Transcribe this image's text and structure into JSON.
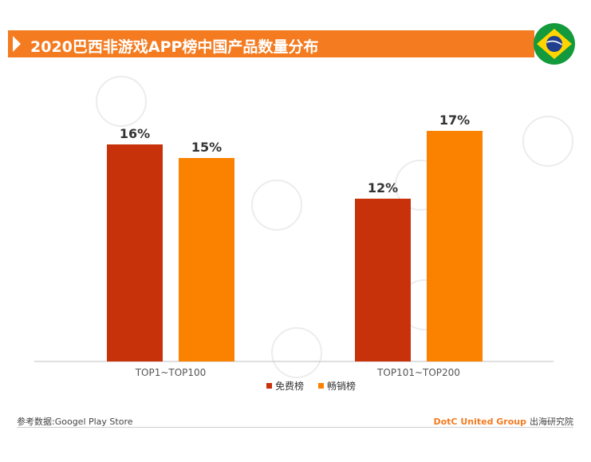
{
  "header": {
    "title": "2020巴西非游戏APP榜中国产品数量分布"
  },
  "footer": {
    "source": "参考数据:Googel Play Store",
    "brand": "DotC United Group",
    "brand_suffix": "出海研究院"
  },
  "colors": {
    "title_bar": "#f47b20",
    "series_free": "#c8320a",
    "series_paid": "#fb8200"
  },
  "chart_data": {
    "type": "bar",
    "categories": [
      "TOP1~TOP100",
      "TOP101~TOP200"
    ],
    "series": [
      {
        "name": "免费榜",
        "values": [
          16,
          12
        ],
        "labels": [
          "16%",
          "12%"
        ]
      },
      {
        "name": "畅销榜",
        "values": [
          15,
          17
        ],
        "labels": [
          "15%",
          "17%"
        ]
      }
    ],
    "ylim": [
      0,
      20
    ],
    "legend_position": "bottom",
    "grid": false
  }
}
